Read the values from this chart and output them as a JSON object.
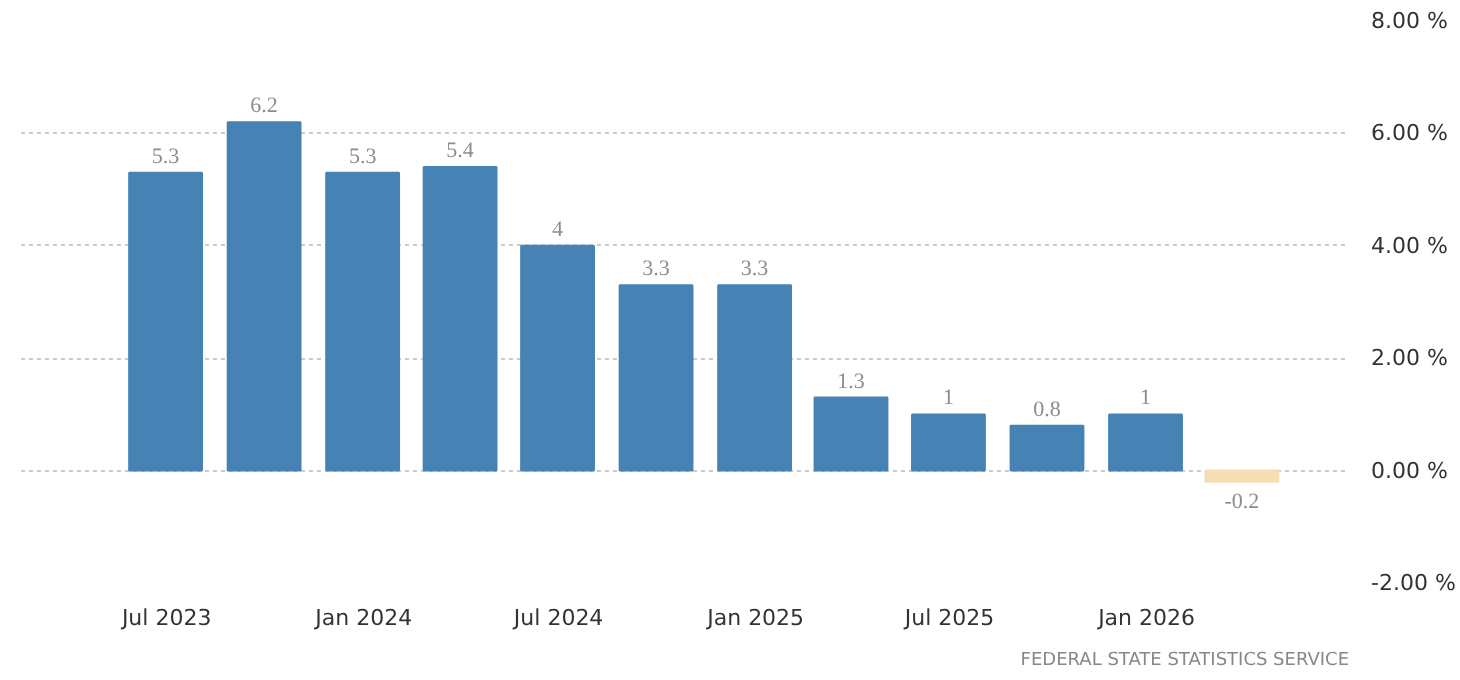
{
  "chart_data": {
    "type": "bar",
    "x": [
      "2023-06-30",
      "2023-09-30",
      "2023-12-31",
      "2024-03-31",
      "2024-06-30",
      "2024-09-30",
      "2024-12-31",
      "2025-03-31",
      "2025-06-30",
      "2025-09-30",
      "2025-12-31",
      "2026-03-31"
    ],
    "values": [
      5.3,
      6.2,
      5.3,
      5.4,
      4,
      3.3,
      3.3,
      1.3,
      1,
      0.8,
      1,
      -0.2
    ],
    "colors": [
      "#4682b4",
      "#4682b4",
      "#4682b4",
      "#4682b4",
      "#4682b4",
      "#4682b4",
      "#4682b4",
      "#4682b4",
      "#4682b4",
      "#4682b4",
      "#4682b4",
      "#f5deb3"
    ],
    "data_labels": true,
    "xlim": [
      "2023-02-15",
      "2026-07-09"
    ],
    "xticks": [
      {
        "value": "2023-07",
        "label": "Jul 2023"
      },
      {
        "value": "2024-01",
        "label": "Jan 2024"
      },
      {
        "value": "2024-07",
        "label": "Jul 2024"
      },
      {
        "value": "2025-01",
        "label": "Jan 2025"
      },
      {
        "value": "2025-07",
        "label": "Jul 2025"
      },
      {
        "value": "2026-01",
        "label": "Jan 2026"
      }
    ],
    "ylim": [
      -2,
      8
    ],
    "yticks": [
      {
        "value": -2,
        "label": "-2.00 %"
      },
      {
        "value": 0,
        "label": "0.00 %"
      },
      {
        "value": 2,
        "label": "2.00 %"
      },
      {
        "value": 4,
        "label": "4.00 %"
      },
      {
        "value": 6,
        "label": "6.00 %"
      },
      {
        "value": 8,
        "label": "8.00 %"
      }
    ],
    "grid": "y",
    "annotations": [
      "FEDERAL STATE STATISTICS SERVICE"
    ]
  }
}
